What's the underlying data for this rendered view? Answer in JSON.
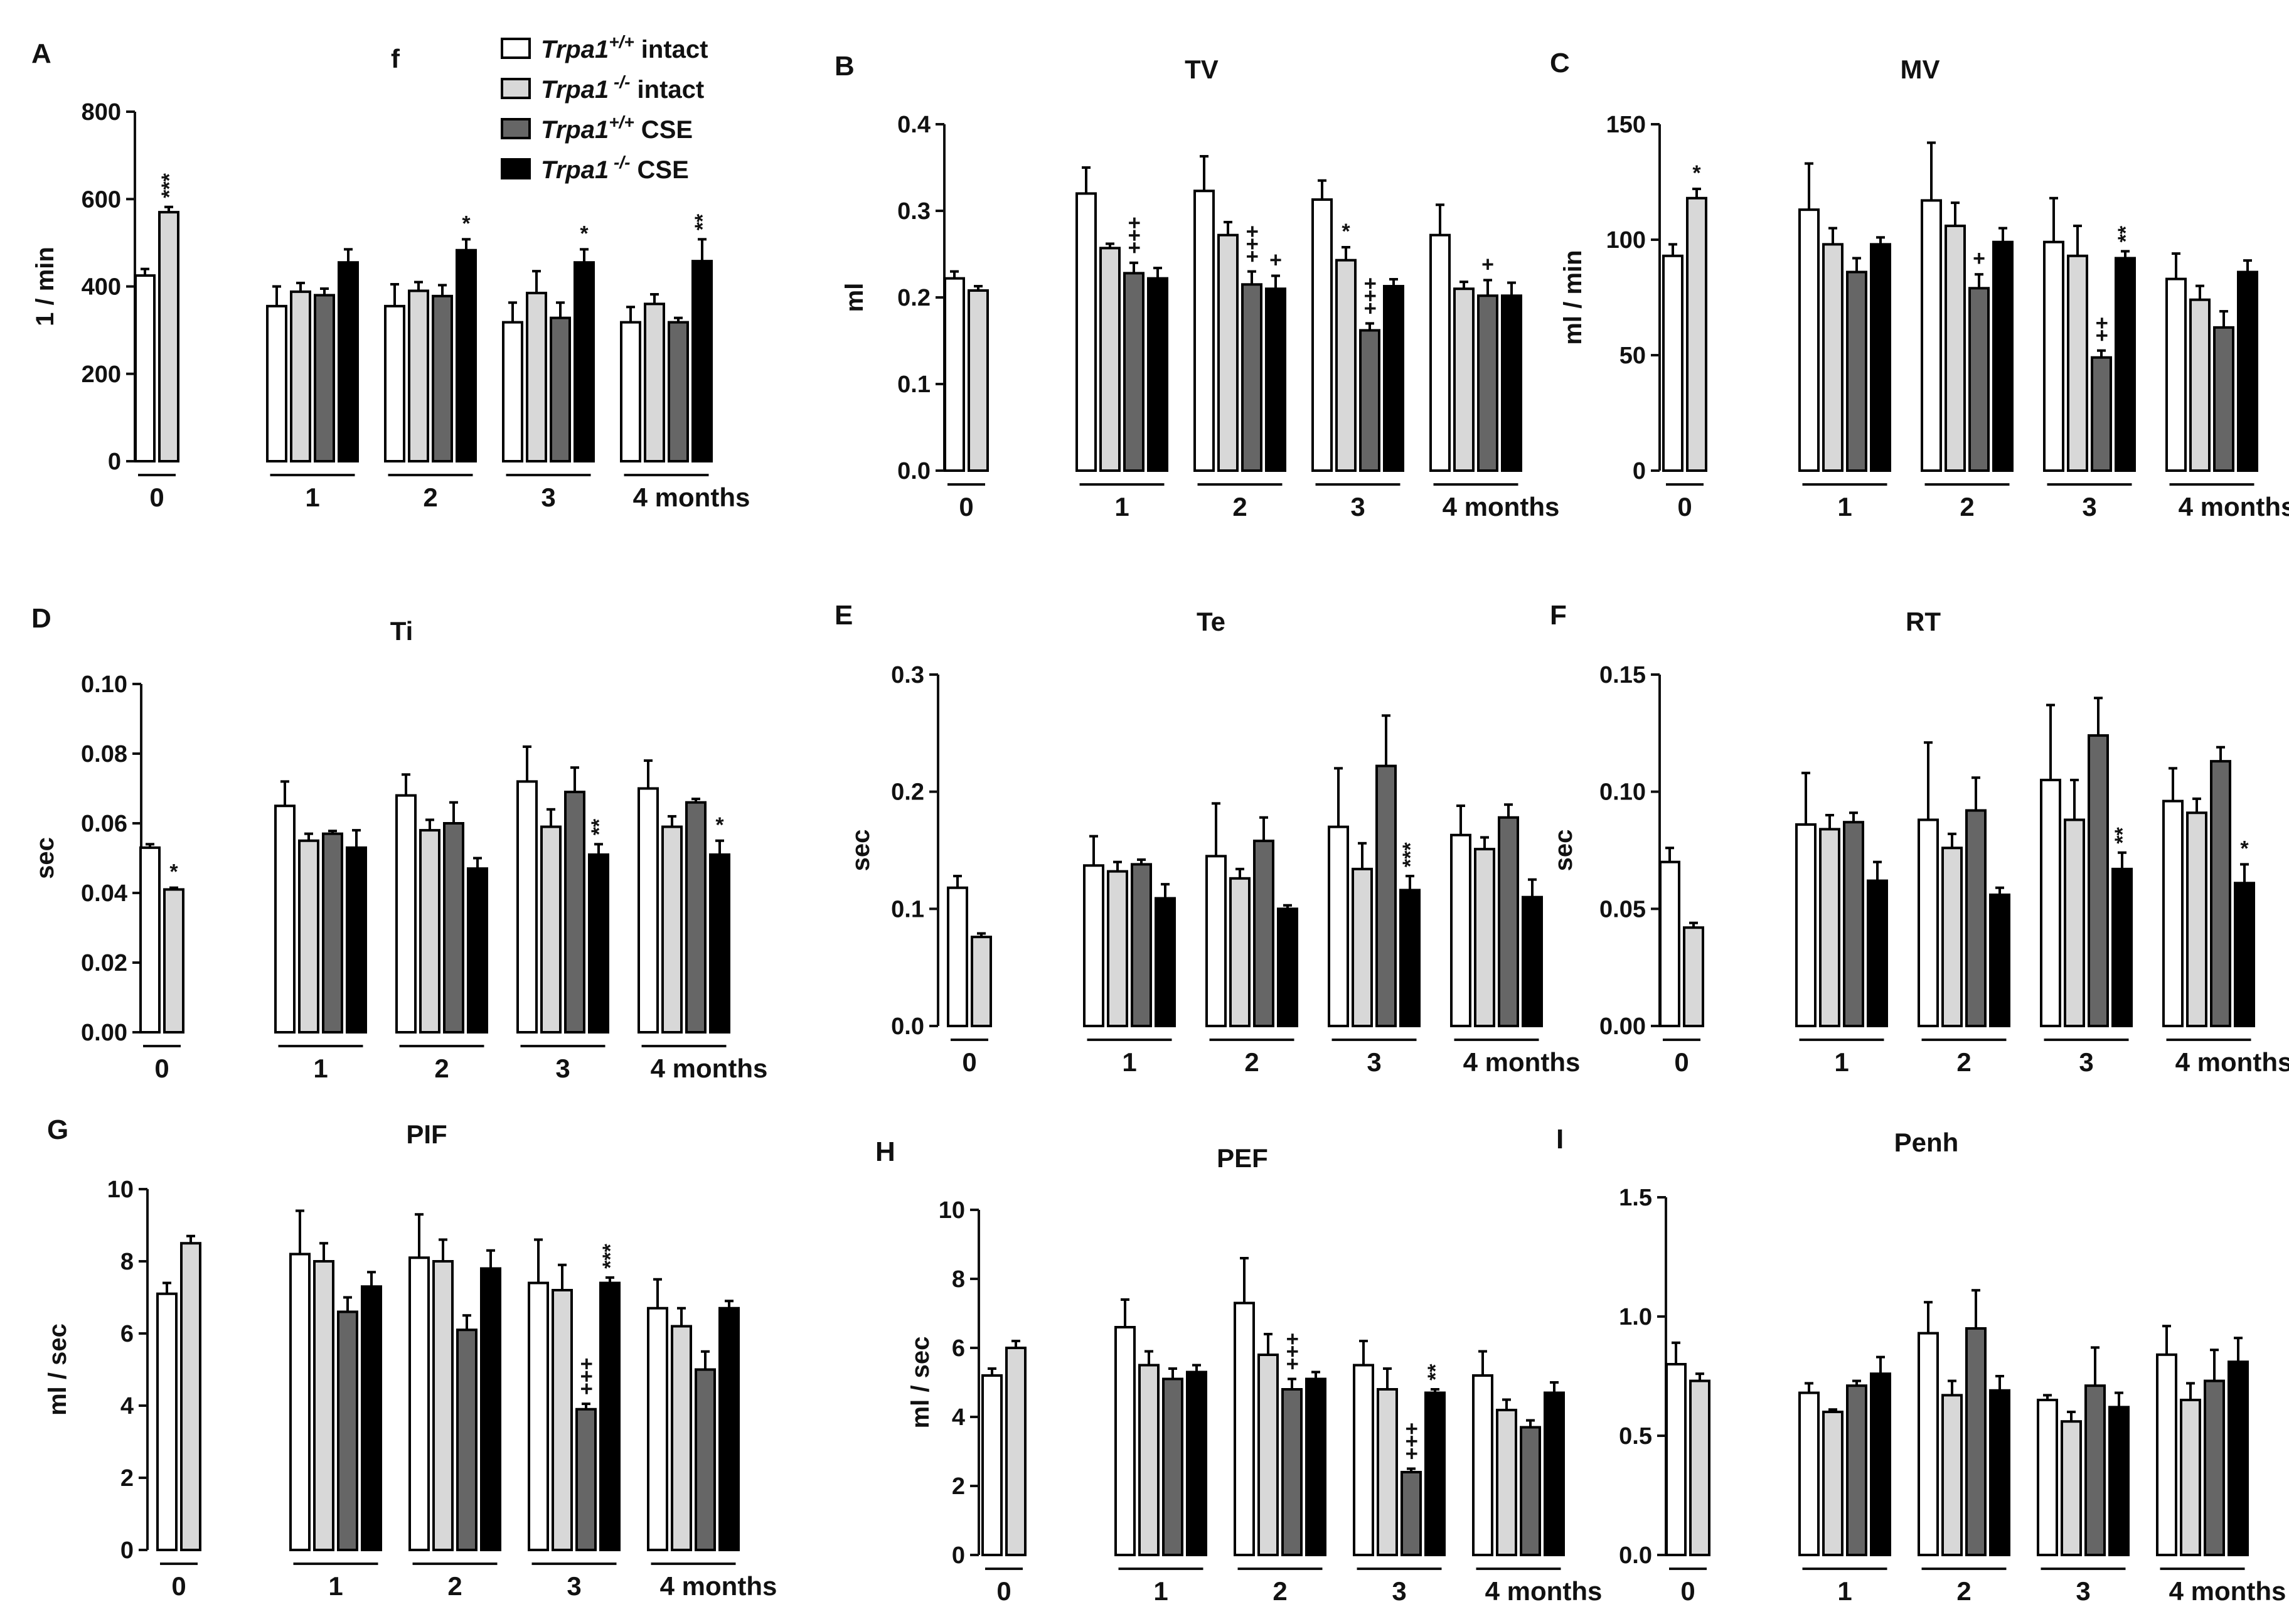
{
  "legend": {
    "items": [
      {
        "gene": "Trpa1",
        "sup": "+/+",
        "rest": " intact",
        "color": "#ffffff"
      },
      {
        "gene": "Trpa1",
        "sup": " -/-",
        "rest": "  intact",
        "color": "#d8d8d8"
      },
      {
        "gene": "Trpa1",
        "sup": "+/+",
        "rest": " CSE",
        "color": "#666666"
      },
      {
        "gene": "Trpa1",
        "sup": " -/-",
        "rest": "  CSE",
        "color": "#000000"
      }
    ]
  },
  "chart_data": [
    {
      "letter": "A",
      "title": "f",
      "type": "bar",
      "ylabel": "1 / min",
      "ylim": [
        0,
        800
      ],
      "yticks": [
        "0",
        "200",
        "400",
        "600",
        "800"
      ],
      "groups": [
        "0",
        "1",
        "2",
        "3",
        "4 months"
      ],
      "series": [
        {
          "name": "Trpa1+/+ intact",
          "values": [
            425,
            355,
            355,
            318,
            318
          ],
          "errors": [
            15,
            45,
            50,
            45,
            35
          ]
        },
        {
          "name": "Trpa1-/- intact",
          "values": [
            570,
            388,
            390,
            385,
            360
          ],
          "errors": [
            12,
            20,
            20,
            50,
            22
          ]
        },
        {
          "name": "Trpa1+/+ CSE",
          "values": [
            null,
            380,
            378,
            328,
            318
          ],
          "errors": [
            null,
            15,
            25,
            35,
            10
          ]
        },
        {
          "name": "Trpa1-/- CSE",
          "values": [
            null,
            455,
            483,
            455,
            458
          ],
          "errors": [
            null,
            30,
            25,
            30,
            50
          ]
        }
      ],
      "annotations": [
        {
          "group": 0,
          "bar": 1,
          "text": "***",
          "vertical": true
        },
        {
          "group": 2,
          "bar": 3,
          "text": "*"
        },
        {
          "group": 3,
          "bar": 3,
          "text": "*"
        },
        {
          "group": 4,
          "bar": 3,
          "text": "**",
          "vertical": true
        }
      ]
    },
    {
      "letter": "B",
      "title": "TV",
      "type": "bar",
      "ylabel": "ml",
      "ylim": [
        0,
        0.4
      ],
      "yticks": [
        "0.0",
        "0.1",
        "0.2",
        "0.3",
        "0.4"
      ],
      "groups": [
        "0",
        "1",
        "2",
        "3",
        "4 months"
      ],
      "series": [
        {
          "name": "Trpa1+/+ intact",
          "values": [
            0.222,
            0.32,
            0.323,
            0.313,
            0.272
          ],
          "errors": [
            0.008,
            0.03,
            0.04,
            0.022,
            0.035
          ]
        },
        {
          "name": "Trpa1-/- intact",
          "values": [
            0.208,
            0.257,
            0.272,
            0.243,
            0.21
          ],
          "errors": [
            0.005,
            0.005,
            0.015,
            0.015,
            0.008
          ]
        },
        {
          "name": "Trpa1+/+ CSE",
          "values": [
            null,
            0.228,
            0.215,
            0.162,
            0.202
          ],
          "errors": [
            null,
            0.012,
            0.015,
            0.008,
            0.018
          ]
        },
        {
          "name": "Trpa1-/- CSE",
          "values": [
            null,
            0.222,
            0.21,
            0.213,
            0.202
          ],
          "errors": [
            null,
            0.012,
            0.015,
            0.008,
            0.015
          ]
        }
      ],
      "annotations": [
        {
          "group": 1,
          "bar": 2,
          "text": "+++",
          "vertical": true
        },
        {
          "group": 2,
          "bar": 2,
          "text": "+++",
          "vertical": true
        },
        {
          "group": 2,
          "bar": 3,
          "text": "+"
        },
        {
          "group": 3,
          "bar": 1,
          "text": "*"
        },
        {
          "group": 3,
          "bar": 2,
          "text": "+++",
          "vertical": true
        },
        {
          "group": 4,
          "bar": 2,
          "text": "+"
        }
      ]
    },
    {
      "letter": "C",
      "title": "MV",
      "type": "bar",
      "ylabel": "ml / min",
      "ylim": [
        0,
        150
      ],
      "yticks": [
        "0",
        "50",
        "100",
        "150"
      ],
      "groups": [
        "0",
        "1",
        "2",
        "3",
        "4 months"
      ],
      "series": [
        {
          "name": "Trpa1+/+ intact",
          "values": [
            93,
            113,
            117,
            99,
            83
          ],
          "errors": [
            5,
            20,
            25,
            19,
            11
          ]
        },
        {
          "name": "Trpa1-/- intact",
          "values": [
            118,
            98,
            106,
            93,
            74
          ],
          "errors": [
            4,
            7,
            10,
            13,
            6
          ]
        },
        {
          "name": "Trpa1+/+ CSE",
          "values": [
            null,
            86,
            79,
            49,
            62
          ],
          "errors": [
            null,
            6,
            6,
            3,
            7
          ]
        },
        {
          "name": "Trpa1-/- CSE",
          "values": [
            null,
            98,
            99,
            92,
            86
          ],
          "errors": [
            null,
            3,
            6,
            3,
            5
          ]
        }
      ],
      "annotations": [
        {
          "group": 0,
          "bar": 1,
          "text": "*"
        },
        {
          "group": 2,
          "bar": 2,
          "text": "+"
        },
        {
          "group": 3,
          "bar": 2,
          "text": "++",
          "vertical": true
        },
        {
          "group": 3,
          "bar": 3,
          "text": "**",
          "vertical": true
        }
      ]
    },
    {
      "letter": "D",
      "title": "Ti",
      "type": "bar",
      "ylabel": "sec",
      "ylim": [
        0,
        0.1
      ],
      "yticks": [
        "0.00",
        "0.02",
        "0.04",
        "0.06",
        "0.08",
        "0.10"
      ],
      "groups": [
        "0",
        "1",
        "2",
        "3",
        "4 months"
      ],
      "series": [
        {
          "name": "Trpa1+/+ intact",
          "values": [
            0.053,
            0.065,
            0.068,
            0.072,
            0.07
          ],
          "errors": [
            0.001,
            0.007,
            0.006,
            0.01,
            0.008
          ]
        },
        {
          "name": "Trpa1-/- intact",
          "values": [
            0.041,
            0.055,
            0.058,
            0.059,
            0.059
          ],
          "errors": [
            0.0005,
            0.002,
            0.003,
            0.005,
            0.003
          ]
        },
        {
          "name": "Trpa1+/+ CSE",
          "values": [
            null,
            0.057,
            0.06,
            0.069,
            0.066
          ],
          "errors": [
            null,
            0.0008,
            0.006,
            0.007,
            0.001
          ]
        },
        {
          "name": "Trpa1-/- CSE",
          "values": [
            null,
            0.053,
            0.047,
            0.051,
            0.051
          ],
          "errors": [
            null,
            0.005,
            0.003,
            0.003,
            0.004
          ]
        }
      ],
      "annotations": [
        {
          "group": 0,
          "bar": 1,
          "text": "*"
        },
        {
          "group": 3,
          "bar": 3,
          "text": "**",
          "vertical": true
        },
        {
          "group": 4,
          "bar": 3,
          "text": "*"
        }
      ]
    },
    {
      "letter": "E",
      "title": "Te",
      "type": "bar",
      "ylabel": "sec",
      "ylim": [
        0,
        0.3
      ],
      "yticks": [
        "0.0",
        "0.1",
        "0.2",
        "0.3"
      ],
      "groups": [
        "0",
        "1",
        "2",
        "3",
        "4 months"
      ],
      "series": [
        {
          "name": "Trpa1+/+ intact",
          "values": [
            0.118,
            0.137,
            0.145,
            0.17,
            0.163
          ],
          "errors": [
            0.01,
            0.025,
            0.045,
            0.05,
            0.025
          ]
        },
        {
          "name": "Trpa1-/- intact",
          "values": [
            0.076,
            0.132,
            0.126,
            0.134,
            0.151
          ],
          "errors": [
            0.003,
            0.008,
            0.008,
            0.022,
            0.01
          ]
        },
        {
          "name": "Trpa1+/+ CSE",
          "values": [
            null,
            0.138,
            0.158,
            0.222,
            0.178
          ],
          "errors": [
            null,
            0.004,
            0.02,
            0.043,
            0.011
          ]
        },
        {
          "name": "Trpa1-/- CSE",
          "values": [
            null,
            0.109,
            0.1,
            0.116,
            0.11
          ],
          "errors": [
            null,
            0.012,
            0.003,
            0.012,
            0.015
          ]
        }
      ],
      "annotations": [
        {
          "group": 3,
          "bar": 3,
          "text": "***",
          "vertical": true
        }
      ]
    },
    {
      "letter": "F",
      "title": "RT",
      "type": "bar",
      "ylabel": "sec",
      "ylim": [
        0,
        0.15
      ],
      "yticks": [
        "0.00",
        "0.05",
        "0.10",
        "0.15"
      ],
      "groups": [
        "0",
        "1",
        "2",
        "3",
        "4 months"
      ],
      "series": [
        {
          "name": "Trpa1+/+ intact",
          "values": [
            0.07,
            0.086,
            0.088,
            0.105,
            0.096
          ],
          "errors": [
            0.006,
            0.022,
            0.033,
            0.032,
            0.014
          ]
        },
        {
          "name": "Trpa1-/- intact",
          "values": [
            0.042,
            0.084,
            0.076,
            0.088,
            0.091
          ],
          "errors": [
            0.002,
            0.006,
            0.006,
            0.017,
            0.006
          ]
        },
        {
          "name": "Trpa1+/+ CSE",
          "values": [
            null,
            0.087,
            0.092,
            0.124,
            0.113
          ],
          "errors": [
            null,
            0.004,
            0.014,
            0.016,
            0.006
          ]
        },
        {
          "name": "Trpa1-/- CSE",
          "values": [
            null,
            0.062,
            0.056,
            0.067,
            0.061
          ],
          "errors": [
            null,
            0.008,
            0.003,
            0.007,
            0.008
          ]
        }
      ],
      "annotations": [
        {
          "group": 3,
          "bar": 3,
          "text": "**",
          "vertical": true
        },
        {
          "group": 4,
          "bar": 3,
          "text": "*"
        }
      ]
    },
    {
      "letter": "G",
      "title": "PIF",
      "type": "bar",
      "ylabel": "ml / sec",
      "ylim": [
        0,
        10
      ],
      "yticks": [
        "0",
        "2",
        "4",
        "6",
        "8",
        "10"
      ],
      "groups": [
        "0",
        "1",
        "2",
        "3",
        "4 months"
      ],
      "series": [
        {
          "name": "Trpa1+/+ intact",
          "values": [
            7.1,
            8.2,
            8.1,
            7.4,
            6.7
          ],
          "errors": [
            0.3,
            1.2,
            1.2,
            1.2,
            0.8
          ]
        },
        {
          "name": "Trpa1-/- intact",
          "values": [
            8.5,
            8.0,
            8.0,
            7.2,
            6.2
          ],
          "errors": [
            0.2,
            0.5,
            0.6,
            0.7,
            0.5
          ]
        },
        {
          "name": "Trpa1+/+ CSE",
          "values": [
            null,
            6.6,
            6.1,
            3.9,
            5.0
          ],
          "errors": [
            null,
            0.4,
            0.4,
            0.15,
            0.5
          ]
        },
        {
          "name": "Trpa1-/- CSE",
          "values": [
            null,
            7.3,
            7.8,
            7.4,
            6.7
          ],
          "errors": [
            null,
            0.4,
            0.5,
            0.15,
            0.2
          ]
        }
      ],
      "annotations": [
        {
          "group": 3,
          "bar": 2,
          "text": "+++",
          "vertical": true
        },
        {
          "group": 3,
          "bar": 3,
          "text": "***",
          "vertical": true
        }
      ]
    },
    {
      "letter": "H",
      "title": "PEF",
      "type": "bar",
      "ylabel": "ml / sec",
      "ylim": [
        0,
        10
      ],
      "yticks": [
        "0",
        "2",
        "4",
        "6",
        "8",
        "10"
      ],
      "groups": [
        "0",
        "1",
        "2",
        "3",
        "4 months"
      ],
      "series": [
        {
          "name": "Trpa1+/+ intact",
          "values": [
            5.2,
            6.6,
            7.3,
            5.5,
            5.2
          ],
          "errors": [
            0.2,
            0.8,
            1.3,
            0.7,
            0.7
          ]
        },
        {
          "name": "Trpa1-/- intact",
          "values": [
            6.0,
            5.5,
            5.8,
            4.8,
            4.2
          ],
          "errors": [
            0.2,
            0.4,
            0.6,
            0.6,
            0.3
          ]
        },
        {
          "name": "Trpa1+/+ CSE",
          "values": [
            null,
            5.1,
            4.8,
            2.4,
            3.7
          ],
          "errors": [
            null,
            0.3,
            0.3,
            0.1,
            0.2
          ]
        },
        {
          "name": "Trpa1-/- CSE",
          "values": [
            null,
            5.3,
            5.1,
            4.7,
            4.7
          ],
          "errors": [
            null,
            0.2,
            0.2,
            0.1,
            0.3
          ]
        }
      ],
      "annotations": [
        {
          "group": 2,
          "bar": 2,
          "text": "+++",
          "vertical": true
        },
        {
          "group": 3,
          "bar": 2,
          "text": "+++",
          "vertical": true
        },
        {
          "group": 3,
          "bar": 3,
          "text": "**",
          "vertical": true
        }
      ]
    },
    {
      "letter": "I",
      "title": "Penh",
      "type": "bar",
      "ylabel": "",
      "ylim": [
        0,
        1.5
      ],
      "yticks": [
        "0.0",
        "0.5",
        "1.0",
        "1.5"
      ],
      "groups": [
        "0",
        "1",
        "2",
        "3",
        "4 months"
      ],
      "series": [
        {
          "name": "Trpa1+/+ intact",
          "values": [
            0.8,
            0.68,
            0.93,
            0.65,
            0.84
          ],
          "errors": [
            0.09,
            0.04,
            0.13,
            0.02,
            0.12
          ]
        },
        {
          "name": "Trpa1-/- intact",
          "values": [
            0.73,
            0.6,
            0.67,
            0.56,
            0.65
          ],
          "errors": [
            0.03,
            0.01,
            0.06,
            0.04,
            0.07
          ]
        },
        {
          "name": "Trpa1+/+ CSE",
          "values": [
            null,
            0.71,
            0.95,
            0.71,
            0.73
          ],
          "errors": [
            null,
            0.02,
            0.16,
            0.16,
            0.13
          ]
        },
        {
          "name": "Trpa1-/- CSE",
          "values": [
            null,
            0.76,
            0.69,
            0.62,
            0.81
          ],
          "errors": [
            null,
            0.07,
            0.06,
            0.06,
            0.1
          ]
        }
      ],
      "annotations": []
    }
  ]
}
